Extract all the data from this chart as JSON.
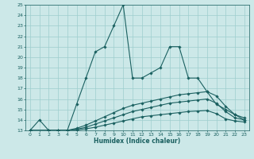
{
  "xlabel": "Humidex (Indice chaleur)",
  "ylabel": "",
  "xlim": [
    -0.5,
    23.5
  ],
  "ylim": [
    13,
    25
  ],
  "xticks": [
    0,
    1,
    2,
    3,
    4,
    5,
    6,
    7,
    8,
    9,
    10,
    11,
    12,
    13,
    14,
    15,
    16,
    17,
    18,
    19,
    20,
    21,
    22,
    23
  ],
  "yticks": [
    13,
    14,
    15,
    16,
    17,
    18,
    19,
    20,
    21,
    22,
    23,
    24,
    25
  ],
  "bg_color": "#cce8e8",
  "grid_color": "#9ecece",
  "line_color": "#1a6060",
  "lines": [
    {
      "x": [
        0,
        1,
        2,
        3,
        4,
        5,
        6,
        7,
        8,
        9,
        10,
        11,
        12,
        13,
        14,
        15,
        16,
        17,
        18,
        19,
        20,
        21,
        22,
        23
      ],
      "y": [
        13,
        14,
        13,
        13,
        13,
        15.5,
        18,
        20.5,
        21,
        23,
        25,
        18,
        18,
        18.5,
        19,
        21,
        21,
        18,
        18,
        16.7,
        15.5,
        15,
        14.5,
        14
      ]
    },
    {
      "x": [
        0,
        2,
        3,
        4,
        5,
        6,
        7,
        8,
        9,
        10,
        11,
        12,
        13,
        14,
        15,
        16,
        17,
        18,
        19,
        20,
        21,
        22,
        23
      ],
      "y": [
        13,
        13,
        13,
        13,
        13.2,
        13.5,
        13.9,
        14.3,
        14.7,
        15.1,
        15.4,
        15.6,
        15.8,
        16.0,
        16.2,
        16.4,
        16.5,
        16.6,
        16.7,
        16.3,
        15.3,
        14.5,
        14.2
      ]
    },
    {
      "x": [
        0,
        2,
        3,
        4,
        5,
        6,
        7,
        8,
        9,
        10,
        11,
        12,
        13,
        14,
        15,
        16,
        17,
        18,
        19,
        20,
        21,
        22,
        23
      ],
      "y": [
        13,
        13,
        13,
        13,
        13.1,
        13.3,
        13.6,
        13.9,
        14.2,
        14.5,
        14.8,
        15.0,
        15.2,
        15.4,
        15.6,
        15.7,
        15.8,
        15.9,
        16.0,
        15.6,
        14.8,
        14.2,
        14.0
      ]
    },
    {
      "x": [
        0,
        2,
        3,
        4,
        5,
        6,
        7,
        8,
        9,
        10,
        11,
        12,
        13,
        14,
        15,
        16,
        17,
        18,
        19,
        20,
        21,
        22,
        23
      ],
      "y": [
        13,
        13,
        13,
        13,
        13.05,
        13.15,
        13.3,
        13.5,
        13.7,
        13.9,
        14.1,
        14.3,
        14.4,
        14.5,
        14.6,
        14.7,
        14.8,
        14.85,
        14.9,
        14.6,
        14.1,
        13.9,
        13.8
      ]
    }
  ]
}
